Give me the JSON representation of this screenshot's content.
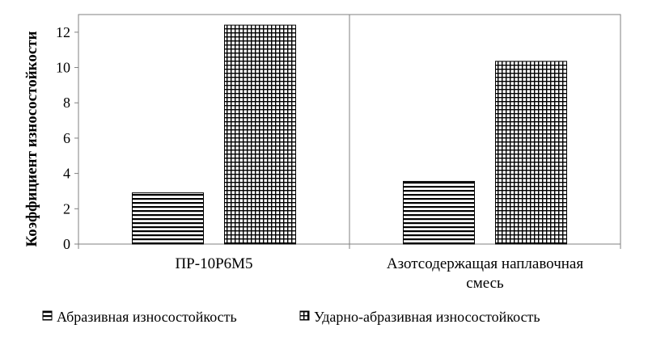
{
  "chart_data": {
    "type": "bar",
    "ylabel": "Коэффициент износостойкости",
    "xlabel": "",
    "ylim": [
      0,
      13
    ],
    "yticks": [
      0,
      2,
      4,
      6,
      8,
      10,
      12
    ],
    "categories": [
      [
        "ПР-10Р6М5"
      ],
      [
        "Азотсодержащая наплавочная",
        "смесь"
      ]
    ],
    "series": [
      {
        "name": "Абразивная износостойкость",
        "pattern": "horizontal-stripes",
        "values": [
          2.9,
          3.55
        ]
      },
      {
        "name": "Ударно-абразивная износостойкость",
        "pattern": "grid",
        "values": [
          12.4,
          10.35
        ]
      }
    ],
    "grid": false,
    "legend_position": "bottom",
    "colors": {
      "bar_fill": "#000000",
      "background": "#ffffff",
      "axis": "#808080"
    }
  }
}
